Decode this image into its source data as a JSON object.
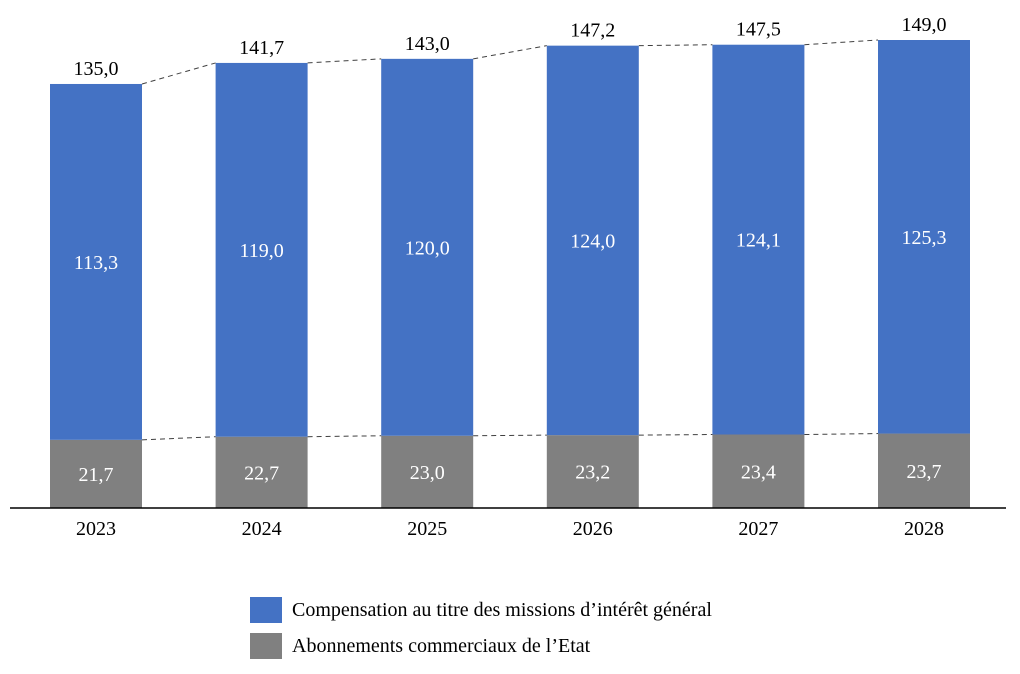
{
  "chart_data": {
    "type": "bar",
    "stacked": true,
    "categories": [
      "2023",
      "2024",
      "2025",
      "2026",
      "2027",
      "2028"
    ],
    "series": [
      {
        "name": "Abonnements commerciaux de l’Etat",
        "color": "#808080",
        "values": [
          21.7,
          22.7,
          23.0,
          23.2,
          23.4,
          23.7
        ],
        "labels": [
          "21,7",
          "22,7",
          "23,0",
          "23,2",
          "23,4",
          "23,7"
        ]
      },
      {
        "name": "Compensation au titre des missions d’intérêt général",
        "color": "#4472C4",
        "values": [
          113.3,
          119.0,
          120.0,
          124.0,
          124.1,
          125.3
        ],
        "labels": [
          "113,3",
          "119,0",
          "120,0",
          "124,0",
          "124,1",
          "125,3"
        ]
      }
    ],
    "totals": [
      135.0,
      141.7,
      143.0,
      147.2,
      147.5,
      149.0
    ],
    "total_labels": [
      "135,0",
      "141,7",
      "143,0",
      "147,2",
      "147,5",
      "149,0"
    ],
    "ylim": [
      0,
      149
    ],
    "grid": false,
    "connector_lines": "dashed",
    "legend_position": "bottom"
  },
  "legend": {
    "items": [
      {
        "label": "Compensation au titre des missions d’intérêt général",
        "color": "#4472C4"
      },
      {
        "label": "Abonnements commerciaux de l’Etat",
        "color": "#808080"
      }
    ]
  }
}
